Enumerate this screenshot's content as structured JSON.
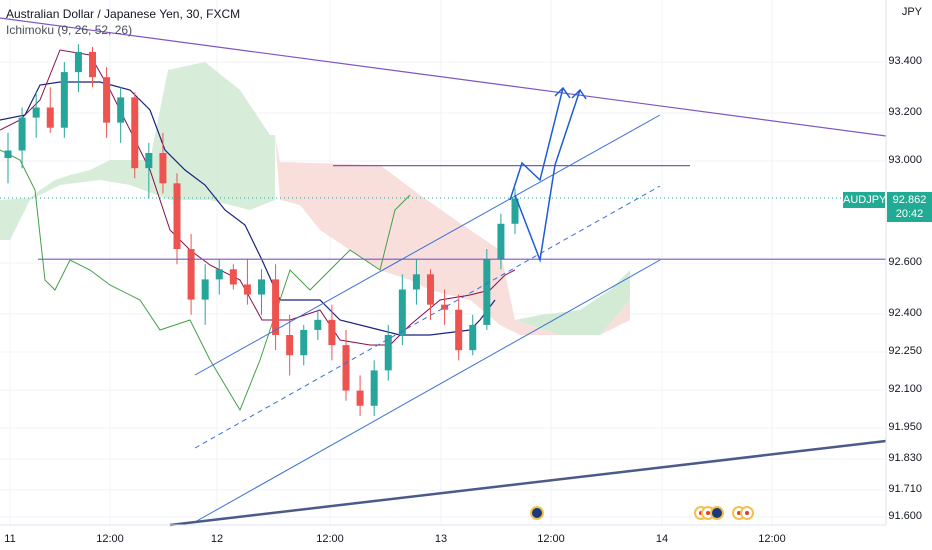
{
  "legend": {
    "title": "Australian Dollar / Japanese Yen, 30, FXCM",
    "indicator": "Ichimoku (9, 26, 52, 26)"
  },
  "axis": {
    "currency": "JPY",
    "price_ticks": [
      "93.400",
      "93.200",
      "93.000",
      "92.600",
      "92.400",
      "92.250",
      "92.100",
      "91.950",
      "91.830",
      "91.710",
      "91.600"
    ],
    "time_ticks": [
      "11",
      "12:00",
      "12",
      "12:00",
      "13",
      "12:00",
      "14",
      "12:00"
    ]
  },
  "last_price": {
    "symbol": "AUDJPY",
    "price": "92.862",
    "countdown": "20:42"
  },
  "colors": {
    "up": "#26a69a",
    "down": "#ef5350",
    "kumo_bull": "#c8e6c9",
    "kumo_bear": "#f8d7d3",
    "tenkan": "#880e4f",
    "kijun": "#1a237e",
    "chikou": "#43a047",
    "trendline": "#3a6fd8",
    "resistance": "#7e57c2",
    "projection": "#1e5bd6",
    "support_long": "#4a5a8a"
  },
  "events": [
    "au-flag-icon",
    "calendar-event-icon",
    "calendar-event-icon",
    "au-flag-icon",
    "calendar-event-icon",
    "calendar-event-icon"
  ],
  "chart_data": {
    "type": "candlestick",
    "title": "Australian Dollar / Japanese Yen, 30, FXCM",
    "symbol": "AUDJPY",
    "timeframe": "30",
    "ylim": [
      91.56,
      93.48
    ],
    "current_price": 92.862,
    "horizontal_levels": [
      92.99,
      92.62
    ],
    "ohlc": [
      [
        93.02,
        93.12,
        92.92,
        93.05
      ],
      [
        93.05,
        93.22,
        92.98,
        93.18
      ],
      [
        93.18,
        93.28,
        93.1,
        93.22
      ],
      [
        93.22,
        93.3,
        93.12,
        93.14
      ],
      [
        93.14,
        93.4,
        93.1,
        93.36
      ],
      [
        93.36,
        93.47,
        93.28,
        93.44
      ],
      [
        93.44,
        93.46,
        93.3,
        93.34
      ],
      [
        93.34,
        93.38,
        93.1,
        93.16
      ],
      [
        93.16,
        93.3,
        93.08,
        93.26
      ],
      [
        93.26,
        93.28,
        92.94,
        92.98
      ],
      [
        92.98,
        93.08,
        92.86,
        93.04
      ],
      [
        93.04,
        93.12,
        92.88,
        92.92
      ],
      [
        92.92,
        92.96,
        92.6,
        92.66
      ],
      [
        92.66,
        92.72,
        92.4,
        92.46
      ],
      [
        92.46,
        92.6,
        92.36,
        92.54
      ],
      [
        92.54,
        92.62,
        92.48,
        92.58
      ],
      [
        92.58,
        92.6,
        92.5,
        92.52
      ],
      [
        92.52,
        92.62,
        92.44,
        92.48
      ],
      [
        92.48,
        92.58,
        92.4,
        92.54
      ],
      [
        92.54,
        92.6,
        92.26,
        92.32
      ],
      [
        92.32,
        92.4,
        92.16,
        92.24
      ],
      [
        92.24,
        92.36,
        92.2,
        92.34
      ],
      [
        92.34,
        92.42,
        92.3,
        92.38
      ],
      [
        92.38,
        92.44,
        92.22,
        92.28
      ],
      [
        92.28,
        92.34,
        92.06,
        92.1
      ],
      [
        92.1,
        92.16,
        92.0,
        92.04
      ],
      [
        92.04,
        92.22,
        92.0,
        92.18
      ],
      [
        92.18,
        92.36,
        92.14,
        92.32
      ],
      [
        92.32,
        92.56,
        92.28,
        92.5
      ],
      [
        92.5,
        92.62,
        92.44,
        92.56
      ],
      [
        92.56,
        92.58,
        92.38,
        92.44
      ],
      [
        92.44,
        92.5,
        92.36,
        92.42
      ],
      [
        92.42,
        92.48,
        92.22,
        92.26
      ],
      [
        92.26,
        92.4,
        92.24,
        92.36
      ],
      [
        92.36,
        92.66,
        92.34,
        92.62
      ],
      [
        92.62,
        92.8,
        92.58,
        92.76
      ],
      [
        92.76,
        92.9,
        92.72,
        92.86
      ]
    ]
  }
}
